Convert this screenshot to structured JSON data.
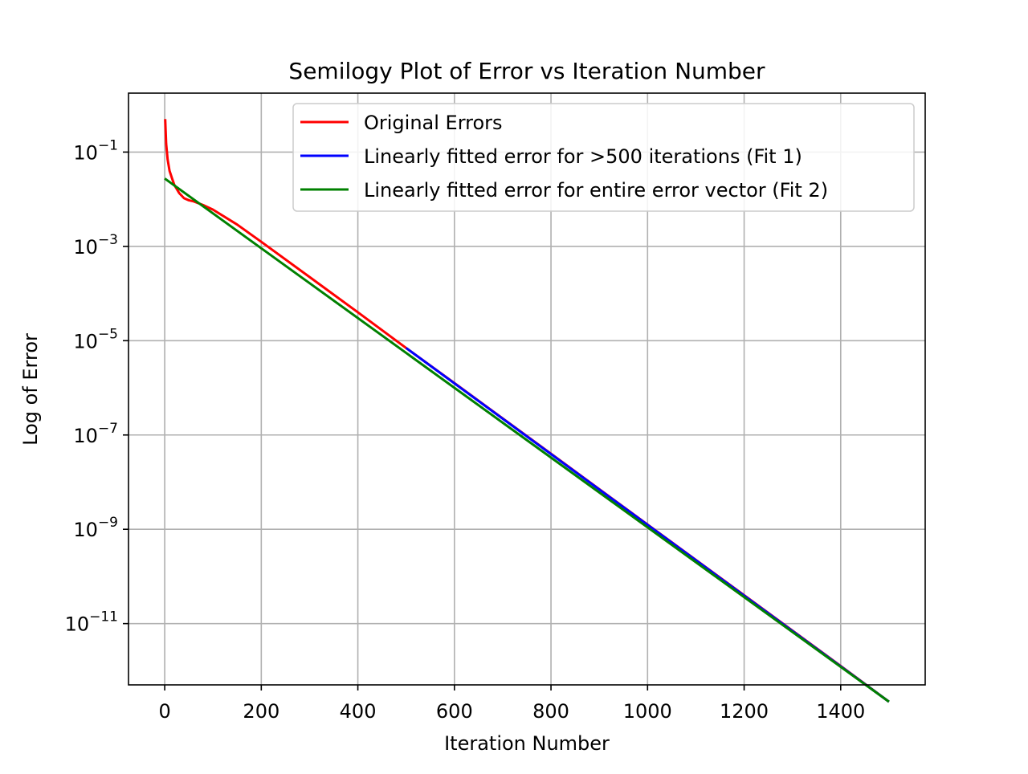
{
  "chart_data": {
    "type": "line",
    "title": "Semilogy Plot of Error vs Iteration Number",
    "xlabel": "Iteration Number",
    "ylabel": "Log of Error",
    "yscale": "log",
    "xlim": [
      -75,
      1575
    ],
    "ylim_log10": [
      -12.3,
      0.25
    ],
    "grid": true,
    "legend_position": "top-right",
    "x_ticks": [
      {
        "value": 0,
        "label": "0"
      },
      {
        "value": 200,
        "label": "200"
      },
      {
        "value": 400,
        "label": "400"
      },
      {
        "value": 600,
        "label": "600"
      },
      {
        "value": 800,
        "label": "800"
      },
      {
        "value": 1000,
        "label": "1000"
      },
      {
        "value": 1200,
        "label": "1200"
      },
      {
        "value": 1400,
        "label": "1400"
      }
    ],
    "y_ticks": [
      {
        "value": 0.1,
        "base": "10",
        "exp": "−1"
      },
      {
        "value": 0.001,
        "base": "10",
        "exp": "−3"
      },
      {
        "value": 1e-05,
        "base": "10",
        "exp": "−5"
      },
      {
        "value": 1e-07,
        "base": "10",
        "exp": "−7"
      },
      {
        "value": 1e-09,
        "base": "10",
        "exp": "−9"
      },
      {
        "value": 1e-11,
        "base": "10",
        "exp": "−11"
      }
    ],
    "series": [
      {
        "name": "Original Errors",
        "color": "#ff0000",
        "x": [
          1,
          3,
          6,
          10,
          15,
          20,
          30,
          40,
          50,
          60,
          80,
          100,
          150,
          200,
          300,
          400,
          500,
          600,
          800,
          1000,
          1200,
          1400,
          1500
        ],
        "y": [
          0.5,
          0.15,
          0.07,
          0.04,
          0.028,
          0.02,
          0.0135,
          0.0105,
          0.0095,
          0.009,
          0.0075,
          0.006,
          0.0029,
          0.00125,
          0.000224,
          4e-05,
          7e-06,
          1.26e-06,
          4e-08,
          1.26e-09,
          4e-11,
          1.26e-12,
          2.2e-13
        ]
      },
      {
        "name": "Linearly fitted error for >500 iterations (Fit 1)",
        "color": "#0000ff",
        "x": [
          500,
          1500
        ],
        "y": [
          7e-06,
          2.2e-13
        ]
      },
      {
        "name": "Linearly fitted error for entire error vector (Fit 2)",
        "color": "#008000",
        "x": [
          0,
          1500
        ],
        "y": [
          0.0275,
          2.2e-13
        ]
      }
    ]
  }
}
